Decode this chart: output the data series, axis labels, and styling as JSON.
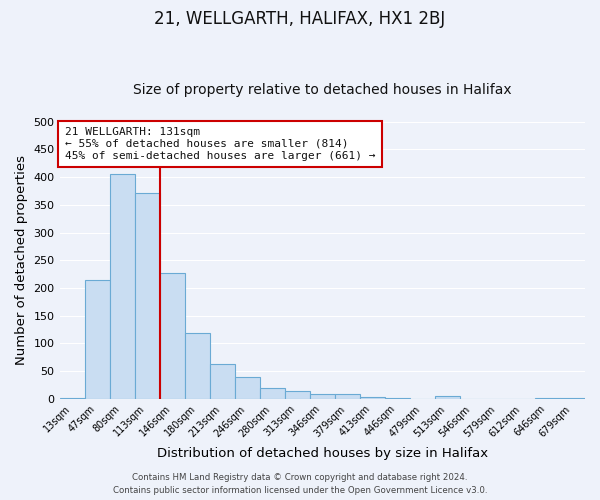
{
  "title": "21, WELLGARTH, HALIFAX, HX1 2BJ",
  "subtitle": "Size of property relative to detached houses in Halifax",
  "xlabel": "Distribution of detached houses by size in Halifax",
  "ylabel": "Number of detached properties",
  "bar_labels": [
    "13sqm",
    "47sqm",
    "80sqm",
    "113sqm",
    "146sqm",
    "180sqm",
    "213sqm",
    "246sqm",
    "280sqm",
    "313sqm",
    "346sqm",
    "379sqm",
    "413sqm",
    "446sqm",
    "479sqm",
    "513sqm",
    "546sqm",
    "579sqm",
    "612sqm",
    "646sqm",
    "679sqm"
  ],
  "bar_values": [
    2,
    214,
    405,
    372,
    228,
    119,
    63,
    40,
    20,
    14,
    8,
    8,
    3,
    2,
    0,
    6,
    0,
    0,
    0,
    2,
    2
  ],
  "bar_color": "#c9ddf2",
  "bar_edge_color": "#6aaad4",
  "vline_color": "#cc0000",
  "vline_x_index": 3,
  "ylim": [
    0,
    500
  ],
  "yticks": [
    0,
    50,
    100,
    150,
    200,
    250,
    300,
    350,
    400,
    450,
    500
  ],
  "annotation_title": "21 WELLGARTH: 131sqm",
  "annotation_line1": "← 55% of detached houses are smaller (814)",
  "annotation_line2": "45% of semi-detached houses are larger (661) →",
  "annotation_box_color": "#ffffff",
  "annotation_box_edge": "#cc0000",
  "footer1": "Contains HM Land Registry data © Crown copyright and database right 2024.",
  "footer2": "Contains public sector information licensed under the Open Government Licence v3.0.",
  "bg_color": "#eef2fa",
  "grid_color": "#ffffff",
  "title_fontsize": 12,
  "subtitle_fontsize": 10,
  "axis_label_fontsize": 9.5
}
